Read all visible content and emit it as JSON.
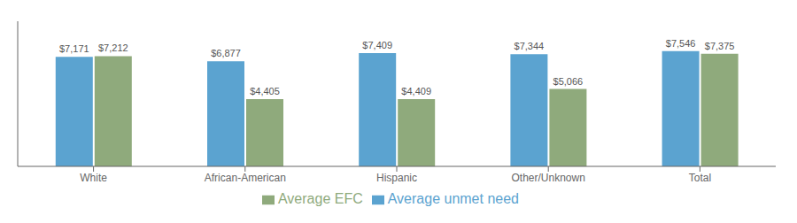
{
  "chart_data": {
    "type": "bar",
    "categories": [
      "White",
      "African-American",
      "Hispanic",
      "Other/Unknown",
      "Total"
    ],
    "series": [
      {
        "name": "Average unmet need",
        "color": "#5ba3d0",
        "values": [
          7171,
          6877,
          7409,
          7344,
          7546
        ],
        "value_labels": [
          "$7,171",
          "$6,877",
          "$7,409",
          "$7,344",
          "$7,546"
        ]
      },
      {
        "name": "Average EFC",
        "color": "#8faa7c",
        "values": [
          7212,
          4405,
          4409,
          5066,
          7375
        ],
        "value_labels": [
          "$7,212",
          "$4,405",
          "$4,409",
          "$5,066",
          "$7,375"
        ]
      }
    ],
    "ylim": [
      0,
      9500
    ],
    "grid": false,
    "legend": "bottom",
    "data_labels": true,
    "tick_labels": "x"
  }
}
